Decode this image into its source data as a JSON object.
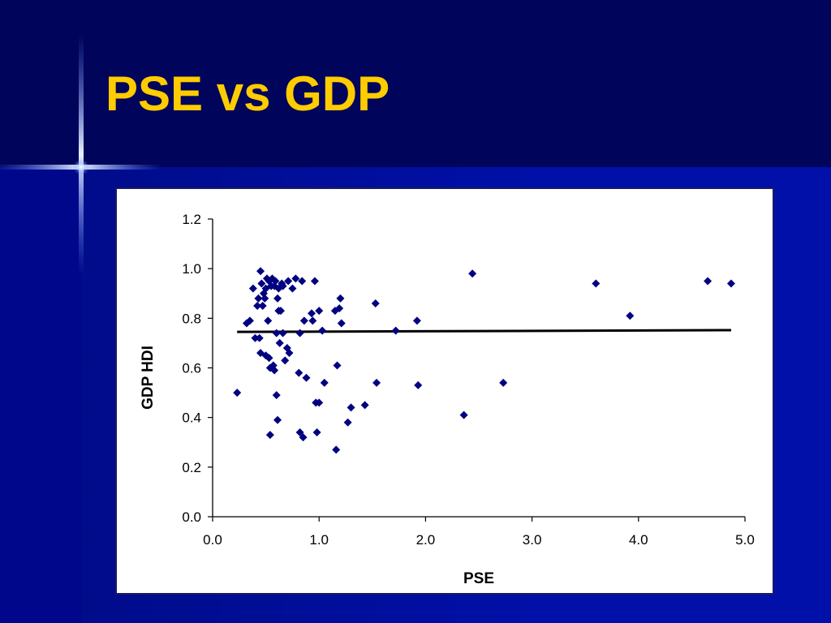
{
  "slide": {
    "title": "PSE vs GDP"
  },
  "colors": {
    "background": "#000a6e",
    "title": "#ffcc00",
    "marker": "#000080",
    "trendline": "#000000"
  },
  "chart_data": {
    "type": "scatter",
    "title": "",
    "xlabel": "PSE",
    "ylabel": "GDP HDI",
    "xlim": [
      0.0,
      5.0
    ],
    "ylim": [
      0.0,
      1.2
    ],
    "x_ticks": [
      "0.0",
      "1.0",
      "2.0",
      "3.0",
      "4.0",
      "5.0"
    ],
    "y_ticks": [
      "0.0",
      "0.2",
      "0.4",
      "0.6",
      "0.8",
      "1.0",
      "1.2"
    ],
    "grid": false,
    "legend": "none",
    "marker": "diamond",
    "trendline": {
      "x": [
        0.23,
        4.87
      ],
      "y": [
        0.745,
        0.752
      ]
    },
    "series": [
      {
        "points": [
          [
            0.23,
            0.5
          ],
          [
            0.32,
            0.78
          ],
          [
            0.35,
            0.79
          ],
          [
            0.38,
            0.92
          ],
          [
            0.4,
            0.72
          ],
          [
            0.42,
            0.85
          ],
          [
            0.43,
            0.88
          ],
          [
            0.44,
            0.72
          ],
          [
            0.45,
            0.99
          ],
          [
            0.45,
            0.66
          ],
          [
            0.46,
            0.94
          ],
          [
            0.47,
            0.85
          ],
          [
            0.48,
            0.9
          ],
          [
            0.49,
            0.88
          ],
          [
            0.5,
            0.92
          ],
          [
            0.5,
            0.65
          ],
          [
            0.51,
            0.96
          ],
          [
            0.52,
            0.79
          ],
          [
            0.53,
            0.95
          ],
          [
            0.53,
            0.64
          ],
          [
            0.54,
            0.6
          ],
          [
            0.54,
            0.33
          ],
          [
            0.55,
            0.93
          ],
          [
            0.56,
            0.96
          ],
          [
            0.57,
            0.61
          ],
          [
            0.58,
            0.59
          ],
          [
            0.58,
            0.93
          ],
          [
            0.59,
            0.95
          ],
          [
            0.6,
            0.49
          ],
          [
            0.6,
            0.74
          ],
          [
            0.61,
            0.39
          ],
          [
            0.61,
            0.88
          ],
          [
            0.62,
            0.92
          ],
          [
            0.62,
            0.83
          ],
          [
            0.63,
            0.7
          ],
          [
            0.64,
            0.83
          ],
          [
            0.65,
            0.94
          ],
          [
            0.66,
            0.93
          ],
          [
            0.66,
            0.74
          ],
          [
            0.68,
            0.63
          ],
          [
            0.7,
            0.68
          ],
          [
            0.71,
            0.95
          ],
          [
            0.72,
            0.66
          ],
          [
            0.75,
            0.92
          ],
          [
            0.78,
            0.96
          ],
          [
            0.81,
            0.58
          ],
          [
            0.82,
            0.34
          ],
          [
            0.82,
            0.74
          ],
          [
            0.84,
            0.95
          ],
          [
            0.85,
            0.32
          ],
          [
            0.86,
            0.79
          ],
          [
            0.88,
            0.56
          ],
          [
            0.93,
            0.82
          ],
          [
            0.94,
            0.79
          ],
          [
            0.96,
            0.95
          ],
          [
            0.97,
            0.46
          ],
          [
            0.98,
            0.34
          ],
          [
            1.0,
            0.46
          ],
          [
            1.0,
            0.83
          ],
          [
            1.03,
            0.75
          ],
          [
            1.05,
            0.54
          ],
          [
            1.15,
            0.83
          ],
          [
            1.16,
            0.27
          ],
          [
            1.17,
            0.61
          ],
          [
            1.19,
            0.84
          ],
          [
            1.2,
            0.88
          ],
          [
            1.21,
            0.78
          ],
          [
            1.27,
            0.38
          ],
          [
            1.3,
            0.44
          ],
          [
            1.43,
            0.45
          ],
          [
            1.53,
            0.86
          ],
          [
            1.54,
            0.54
          ],
          [
            1.72,
            0.75
          ],
          [
            1.92,
            0.79
          ],
          [
            1.93,
            0.53
          ],
          [
            2.36,
            0.41
          ],
          [
            2.44,
            0.98
          ],
          [
            2.73,
            0.54
          ],
          [
            3.6,
            0.94
          ],
          [
            3.92,
            0.81
          ],
          [
            4.65,
            0.95
          ],
          [
            4.87,
            0.94
          ]
        ]
      }
    ]
  }
}
